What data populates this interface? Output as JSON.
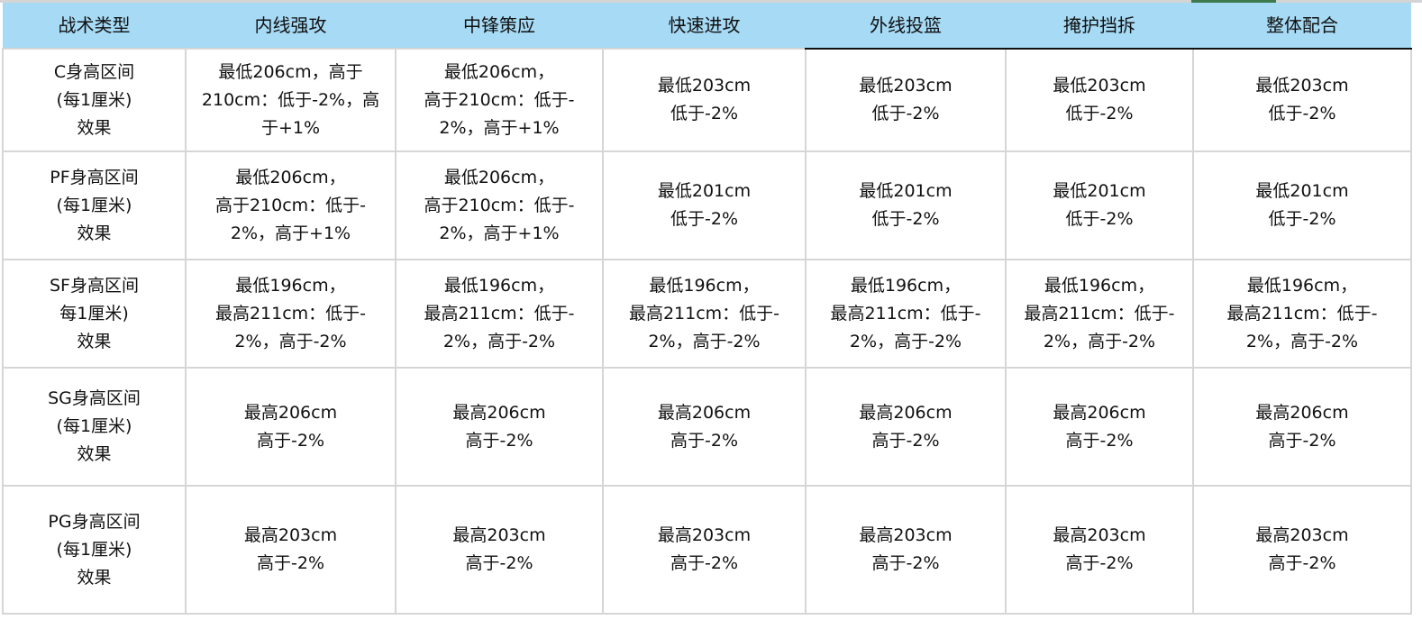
{
  "header": [
    "战术类型",
    "内线强攻",
    "中锋策应",
    "快速进攻",
    "外线投篮",
    "掩护挡拆",
    "整体配合"
  ],
  "rows": [
    {
      "label": "C身高区间\n(每1厘米)\n效果",
      "cells": [
        "最低206cm，高于\n210cm：低于-2%，高\n于+1%",
        "最低206cm，\n高于210cm：低于-\n2%，高于+1%",
        "最低203cm\n低于-2%",
        "最低203cm\n低于-2%",
        "最低203cm\n低于-2%",
        "最低203cm\n低于-2%"
      ]
    },
    {
      "label": "PF身高区间\n(每1厘米)\n效果",
      "cells": [
        "最低206cm，\n高于210cm：低于-\n2%，高于+1%",
        "最低206cm，\n高于210cm：低于-\n2%，高于+1%",
        "最低201cm\n低于-2%",
        "最低201cm\n低于-2%",
        "最低201cm\n低于-2%",
        "最低201cm\n低于-2%"
      ]
    },
    {
      "label": "SF身高区间\n每1厘米)\n效果",
      "cells": [
        "最低196cm，\n最高211cm：低于-\n2%，高于-2%",
        "最低196cm，\n最高211cm：低于-\n2%，高于-2%",
        "最低196cm，\n最高211cm：低于-\n2%，高于-2%",
        "最低196cm，\n最高211cm：低于-\n2%，高于-2%",
        "最低196cm，\n最高211cm：低于-\n2%，高于-2%",
        "最低196cm，\n最高211cm：低于-\n2%，高于-2%"
      ]
    },
    {
      "label": "SG身高区间\n(每1厘米)\n效果",
      "cells": [
        "最高206cm\n高于-2%",
        "最高206cm\n高于-2%",
        "最高206cm\n高于-2%",
        "最高206cm\n高于-2%",
        "最高206cm\n高于-2%",
        "最高206cm\n高于-2%"
      ]
    },
    {
      "label": "PG身高区间\n(每1厘米)\n效果",
      "cells": [
        "最高203cm\n高于-2%",
        "最高203cm\n高于-2%",
        "最高203cm\n高于-2%",
        "最高203cm\n高于-2%",
        "最高203cm\n高于-2%",
        "最高203cm\n高于-2%"
      ]
    }
  ],
  "colors": {
    "header_bg": "#a6daf5",
    "grid": "#d6d6d6",
    "selection_tab": "#3f7a4f"
  }
}
